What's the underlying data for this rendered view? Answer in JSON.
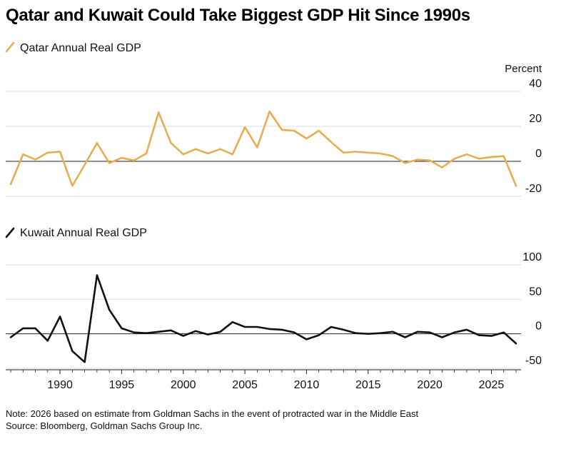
{
  "title": "Qatar and Kuwait Could Take Biggest GDP Hit Since 1990s",
  "note": "Note: 2026 based on estimate from Goldman Sachs in the event of protracted war in the Middle East",
  "source": "Source: Bloomberg, Goldman Sachs Group Inc.",
  "colors": {
    "qatar": "#e8ad52",
    "kuwait": "#111111",
    "grid": "#dddddd",
    "zero": "#222222"
  },
  "chart_data": [
    {
      "type": "line",
      "legend": "Qatar Annual Real GDP",
      "unit_label": "Percent",
      "ylim": [
        -20,
        40
      ],
      "yticks": [
        40,
        20,
        0,
        -20
      ],
      "xlim": [
        1986,
        2027
      ],
      "xticks": [
        1990,
        1995,
        2000,
        2005,
        2010,
        2015,
        2020,
        2025
      ],
      "x": [
        1986,
        1987,
        1988,
        1989,
        1990,
        1991,
        1992,
        1993,
        1994,
        1995,
        1996,
        1997,
        1998,
        1999,
        2000,
        2001,
        2002,
        2003,
        2004,
        2005,
        2006,
        2007,
        2008,
        2009,
        2010,
        2011,
        2012,
        2013,
        2014,
        2015,
        2016,
        2017,
        2018,
        2019,
        2020,
        2021,
        2022,
        2023,
        2024,
        2025,
        2026,
        2027
      ],
      "values": [
        -13,
        4,
        1,
        5,
        5.5,
        -14,
        -2,
        10.5,
        -1,
        2,
        0.5,
        4.5,
        28,
        10.5,
        4,
        7,
        4.5,
        7,
        4,
        19.5,
        8,
        28.5,
        18,
        17.5,
        13,
        17.5,
        11,
        5,
        5.5,
        5,
        4.5,
        3,
        -1,
        1,
        0.5,
        -3.5,
        1.5,
        4,
        1.5,
        2.5,
        3,
        -14
      ]
    },
    {
      "type": "line",
      "legend": "Kuwait Annual Real GDP",
      "ylim": [
        -50,
        100
      ],
      "yticks": [
        100,
        50,
        0,
        -50
      ],
      "xlim": [
        1986,
        2027
      ],
      "xticks": [
        1990,
        1995,
        2000,
        2005,
        2010,
        2015,
        2020,
        2025
      ],
      "x": [
        1986,
        1987,
        1988,
        1989,
        1990,
        1991,
        1992,
        1993,
        1994,
        1995,
        1996,
        1997,
        1998,
        1999,
        2000,
        2001,
        2002,
        2003,
        2004,
        2005,
        2006,
        2007,
        2008,
        2009,
        2010,
        2011,
        2012,
        2013,
        2014,
        2015,
        2016,
        2017,
        2018,
        2019,
        2020,
        2021,
        2022,
        2023,
        2024,
        2025,
        2026,
        2027
      ],
      "values": [
        -5,
        8,
        8,
        -10,
        25,
        -25,
        -41,
        85,
        35,
        8,
        2,
        1,
        3,
        5,
        -3,
        4,
        -1,
        3,
        17,
        10,
        10,
        7,
        6,
        2,
        -8,
        -2,
        10,
        6,
        1,
        0,
        1,
        3,
        -5,
        3,
        2,
        -5,
        2,
        6,
        -2,
        -3,
        2,
        -14
      ]
    }
  ],
  "x_tick_labels": [
    "1990",
    "1995",
    "2000",
    "2005",
    "2010",
    "2015",
    "2020",
    "2025"
  ]
}
